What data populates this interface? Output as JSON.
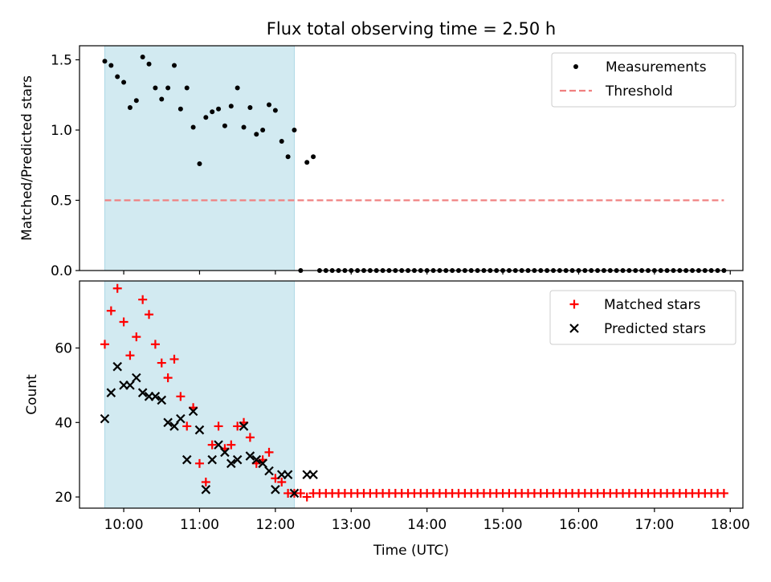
{
  "title": "Flux total observing time = 2.50 h",
  "chart_data": [
    {
      "type": "scatter",
      "ylabel": "Matched/Predicted stars",
      "xlim": [
        "09:25",
        "18:10"
      ],
      "ylim": [
        0,
        1.6
      ],
      "yticks": [
        0.0,
        0.5,
        1.0,
        1.5
      ],
      "ytick_labels": [
        "0.0",
        "0.5",
        "1.0",
        "1.5"
      ],
      "shaded_interval": [
        "09:45",
        "12:15"
      ],
      "legend_position": "top-right",
      "series": [
        {
          "name": "Measurements",
          "marker": "dot",
          "color": "#000000",
          "x": [
            "09:45",
            "09:50",
            "09:55",
            "10:00",
            "10:05",
            "10:10",
            "10:15",
            "10:20",
            "10:25",
            "10:30",
            "10:35",
            "10:40",
            "10:45",
            "10:50",
            "10:55",
            "11:00",
            "11:05",
            "11:10",
            "11:15",
            "11:20",
            "11:25",
            "11:30",
            "11:35",
            "11:40",
            "11:45",
            "11:50",
            "11:55",
            "12:00",
            "12:05",
            "12:10",
            "12:15",
            "12:20",
            "12:25",
            "12:30",
            "12:35",
            "12:40",
            "12:45",
            "12:50",
            "12:55",
            "13:00",
            "13:05",
            "13:10",
            "13:15",
            "13:20",
            "13:25",
            "13:30",
            "13:35",
            "13:40",
            "13:45",
            "13:50",
            "13:55",
            "14:00",
            "14:05",
            "14:10",
            "14:15",
            "14:20",
            "14:25",
            "14:30",
            "14:35",
            "14:40",
            "14:45",
            "14:50",
            "14:55",
            "15:00",
            "15:05",
            "15:10",
            "15:15",
            "15:20",
            "15:25",
            "15:30",
            "15:35",
            "15:40",
            "15:45",
            "15:50",
            "15:55",
            "16:00",
            "16:05",
            "16:10",
            "16:15",
            "16:20",
            "16:25",
            "16:30",
            "16:35",
            "16:40",
            "16:45",
            "16:50",
            "16:55",
            "17:00",
            "17:05",
            "17:10",
            "17:15",
            "17:20",
            "17:25",
            "17:30",
            "17:35",
            "17:40",
            "17:45",
            "17:50",
            "17:55"
          ],
          "y": [
            1.49,
            1.46,
            1.38,
            1.34,
            1.16,
            1.21,
            1.52,
            1.47,
            1.3,
            1.22,
            1.3,
            1.46,
            1.15,
            1.3,
            1.02,
            0.76,
            1.09,
            1.13,
            1.15,
            1.03,
            1.17,
            1.3,
            1.02,
            1.16,
            0.97,
            1.0,
            1.18,
            1.14,
            0.92,
            0.81,
            1.0,
            0.0,
            0.77,
            0.81,
            0.0,
            0.0,
            0.0,
            0.0,
            0.0,
            0.0,
            0.0,
            0.0,
            0.0,
            0.0,
            0.0,
            0.0,
            0.0,
            0.0,
            0.0,
            0.0,
            0.0,
            0.0,
            0.0,
            0.0,
            0.0,
            0.0,
            0.0,
            0.0,
            0.0,
            0.0,
            0.0,
            0.0,
            0.0,
            0.0,
            0.0,
            0.0,
            0.0,
            0.0,
            0.0,
            0.0,
            0.0,
            0.0,
            0.0,
            0.0,
            0.0,
            0.0,
            0.0,
            0.0,
            0.0,
            0.0,
            0.0,
            0.0,
            0.0,
            0.0,
            0.0,
            0.0,
            0.0,
            0.0,
            0.0,
            0.0,
            0.0,
            0.0,
            0.0,
            0.0,
            0.0,
            0.0,
            0.0,
            0.0,
            0.0
          ]
        },
        {
          "name": "Threshold",
          "marker": "dashed-line",
          "color": "#f08080",
          "x": [
            "09:45",
            "17:55"
          ],
          "y": [
            0.5,
            0.5
          ]
        }
      ]
    },
    {
      "type": "scatter",
      "xlabel": "Time (UTC)",
      "ylabel": "Count",
      "xlim": [
        "09:25",
        "18:10"
      ],
      "ylim": [
        17,
        78
      ],
      "yticks": [
        20,
        40,
        60
      ],
      "ytick_labels": [
        "20",
        "40",
        "60"
      ],
      "xticks": [
        "10:00",
        "11:00",
        "12:00",
        "13:00",
        "14:00",
        "15:00",
        "16:00",
        "17:00",
        "18:00"
      ],
      "xtick_labels": [
        "10:00",
        "11:00",
        "12:00",
        "13:00",
        "14:00",
        "15:00",
        "16:00",
        "17:00",
        "18:00"
      ],
      "shaded_interval": [
        "09:45",
        "12:15"
      ],
      "legend_position": "top-right",
      "series": [
        {
          "name": "Matched stars",
          "marker": "plus",
          "color": "#ff0000",
          "x": [
            "09:45",
            "09:50",
            "09:55",
            "10:00",
            "10:05",
            "10:10",
            "10:15",
            "10:20",
            "10:25",
            "10:30",
            "10:35",
            "10:40",
            "10:45",
            "10:50",
            "10:55",
            "11:00",
            "11:05",
            "11:10",
            "11:15",
            "11:20",
            "11:25",
            "11:30",
            "11:35",
            "11:40",
            "11:45",
            "11:50",
            "11:55",
            "12:00",
            "12:05",
            "12:10",
            "12:15",
            "12:20",
            "12:25",
            "12:30",
            "12:35",
            "12:40",
            "12:45",
            "12:50",
            "12:55",
            "13:00",
            "13:05",
            "13:10",
            "13:15",
            "13:20",
            "13:25",
            "13:30",
            "13:35",
            "13:40",
            "13:45",
            "13:50",
            "13:55",
            "14:00",
            "14:05",
            "14:10",
            "14:15",
            "14:20",
            "14:25",
            "14:30",
            "14:35",
            "14:40",
            "14:45",
            "14:50",
            "14:55",
            "15:00",
            "15:05",
            "15:10",
            "15:15",
            "15:20",
            "15:25",
            "15:30",
            "15:35",
            "15:40",
            "15:45",
            "15:50",
            "15:55",
            "16:00",
            "16:05",
            "16:10",
            "16:15",
            "16:20",
            "16:25",
            "16:30",
            "16:35",
            "16:40",
            "16:45",
            "16:50",
            "16:55",
            "17:00",
            "17:05",
            "17:10",
            "17:15",
            "17:20",
            "17:25",
            "17:30",
            "17:35",
            "17:40",
            "17:45",
            "17:50",
            "17:55"
          ],
          "y": [
            61,
            70,
            76,
            67,
            58,
            63,
            73,
            69,
            61,
            56,
            52,
            57,
            47,
            39,
            44,
            29,
            24,
            34,
            39,
            33,
            34,
            39,
            40,
            36,
            29,
            30,
            32,
            25,
            24,
            21,
            21,
            21,
            20,
            21,
            21,
            21,
            21,
            21,
            21,
            21,
            21,
            21,
            21,
            21,
            21,
            21,
            21,
            21,
            21,
            21,
            21,
            21,
            21,
            21,
            21,
            21,
            21,
            21,
            21,
            21,
            21,
            21,
            21,
            21,
            21,
            21,
            21,
            21,
            21,
            21,
            21,
            21,
            21,
            21,
            21,
            21,
            21,
            21,
            21,
            21,
            21,
            21,
            21,
            21,
            21,
            21,
            21,
            21,
            21,
            21,
            21,
            21,
            21,
            21,
            21,
            21,
            21,
            21,
            21
          ]
        },
        {
          "name": "Predicted stars",
          "marker": "x",
          "color": "#000000",
          "x": [
            "09:45",
            "09:50",
            "09:55",
            "10:00",
            "10:05",
            "10:10",
            "10:15",
            "10:20",
            "10:25",
            "10:30",
            "10:35",
            "10:40",
            "10:45",
            "10:50",
            "10:55",
            "11:00",
            "11:05",
            "11:10",
            "11:15",
            "11:20",
            "11:25",
            "11:30",
            "11:35",
            "11:40",
            "11:45",
            "11:50",
            "11:55",
            "12:00",
            "12:05",
            "12:10",
            "12:15",
            "12:25",
            "12:30"
          ],
          "y": [
            41,
            48,
            55,
            50,
            50,
            52,
            48,
            47,
            47,
            46,
            40,
            39,
            41,
            30,
            43,
            38,
            22,
            30,
            34,
            32,
            29,
            30,
            39,
            31,
            30,
            29,
            27,
            22,
            26,
            26,
            21,
            26,
            26
          ]
        }
      ]
    }
  ]
}
